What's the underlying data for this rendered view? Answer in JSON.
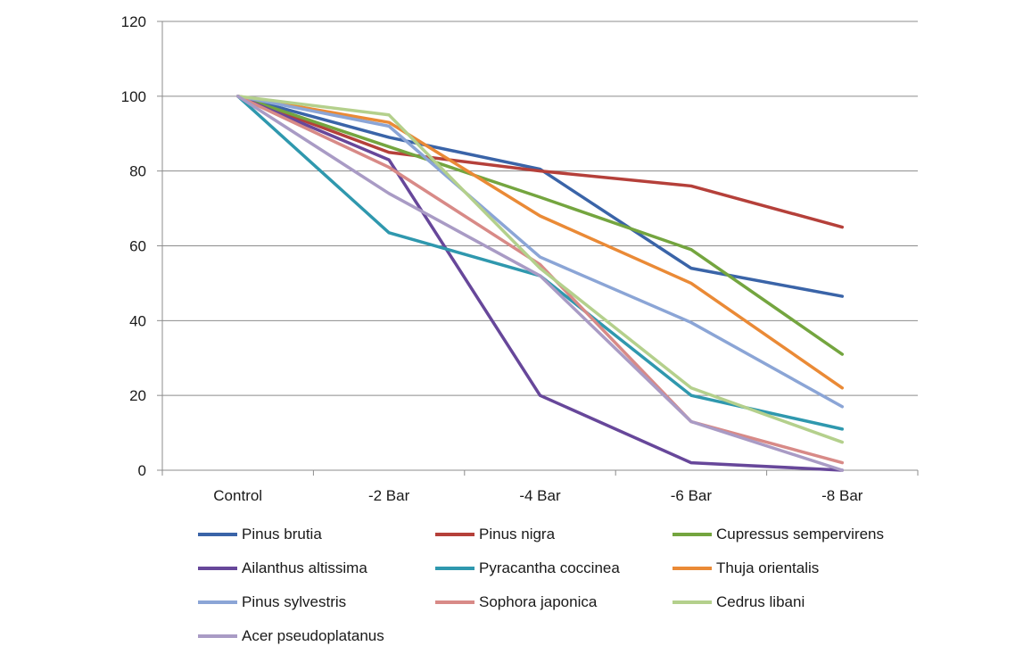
{
  "chart_data": {
    "type": "line",
    "title": "",
    "xlabel": "",
    "ylabel": "",
    "categories": [
      "Control",
      "-2 Bar",
      "-4 Bar",
      "-6 Bar",
      "-8 Bar"
    ],
    "ylim": [
      0,
      120
    ],
    "yticks": [
      0,
      20,
      40,
      60,
      80,
      100,
      120
    ],
    "grid": true,
    "legend_position": "bottom",
    "series": [
      {
        "name": "Pinus brutia",
        "color": "#3a64a8",
        "values": [
          100,
          89,
          80.5,
          54,
          46.5
        ]
      },
      {
        "name": "Pinus nigra",
        "color": "#b5403a",
        "values": [
          100,
          85,
          80,
          76,
          65
        ]
      },
      {
        "name": "Cupressus sempervirens",
        "color": "#74a53f",
        "values": [
          100,
          86.5,
          73,
          59,
          31
        ]
      },
      {
        "name": "Ailanthus altissima",
        "color": "#67479a",
        "values": [
          100,
          83,
          20,
          2,
          0
        ]
      },
      {
        "name": "Pyracantha coccinea",
        "color": "#2f98ae",
        "values": [
          100,
          63.5,
          52,
          20,
          11
        ]
      },
      {
        "name": "Thuja orientalis",
        "color": "#ea8a36",
        "values": [
          100,
          93,
          68,
          50,
          22
        ]
      },
      {
        "name": "Pinus sylvestris",
        "color": "#8ba5d6",
        "values": [
          100,
          92,
          57,
          39.5,
          17
        ]
      },
      {
        "name": "Sophora japonica",
        "color": "#d88a87",
        "values": [
          100,
          81,
          55,
          13,
          2
        ]
      },
      {
        "name": "Cedrus libani",
        "color": "#b4d08c",
        "values": [
          100,
          95,
          54,
          22,
          7.5
        ]
      },
      {
        "name": "Acer pseudoplatanus",
        "color": "#a99bc5",
        "values": [
          100,
          74,
          52,
          13,
          0
        ]
      }
    ]
  }
}
